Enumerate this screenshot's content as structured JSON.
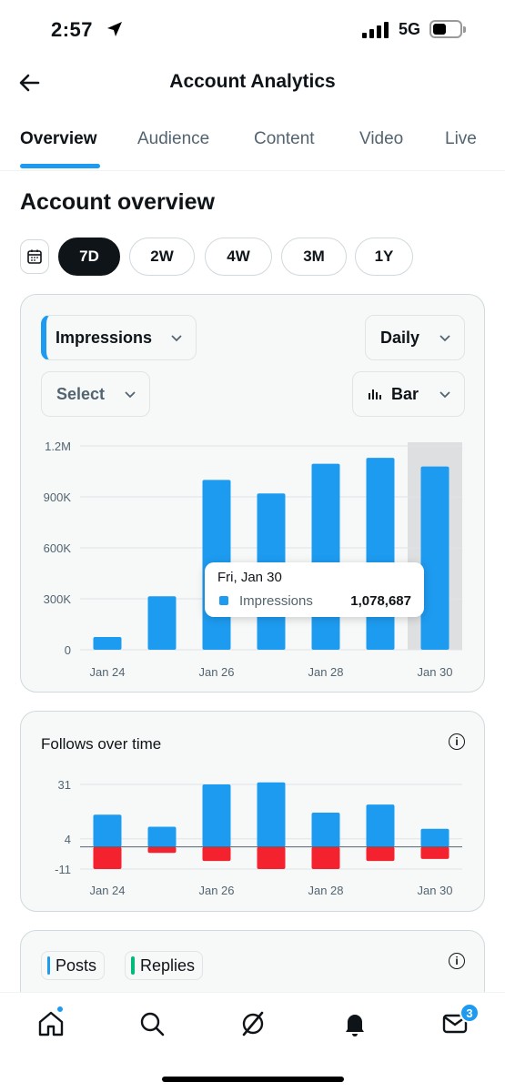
{
  "status_bar": {
    "time": "2:57",
    "network": "5G"
  },
  "header": {
    "title": "Account Analytics"
  },
  "tabs": [
    {
      "label": "Overview",
      "active": true
    },
    {
      "label": "Audience"
    },
    {
      "label": "Content"
    },
    {
      "label": "Video"
    },
    {
      "label": "Live"
    }
  ],
  "section_title": "Account overview",
  "ranges": [
    {
      "label": "7D",
      "active": true
    },
    {
      "label": "2W"
    },
    {
      "label": "4W"
    },
    {
      "label": "3M"
    },
    {
      "label": "1Y"
    }
  ],
  "controls": {
    "metric": "Impressions",
    "interval": "Daily",
    "compare": "Select",
    "chart_type": "Bar"
  },
  "tooltip": {
    "date": "Fri, Jan 30",
    "series": "Impressions",
    "value": "1,078,687"
  },
  "follows_card": {
    "title": "Follows over time"
  },
  "posts_card": {
    "legend": [
      {
        "label": "Posts",
        "color": "#1d9bf0"
      },
      {
        "label": "Replies",
        "color": "#00ba7c"
      }
    ]
  },
  "colors": {
    "accent": "#1d9bf0",
    "negative": "#f4212e",
    "text": "#0f1419",
    "muted": "#536471"
  },
  "bottom_nav": {
    "items": [
      "home-icon",
      "search-icon",
      "grok-icon",
      "notifications-icon",
      "messages-icon"
    ],
    "message_badge": "3"
  },
  "chart_data": [
    {
      "type": "bar",
      "categories": [
        "Jan 24",
        "Jan 25",
        "Jan 26",
        "Jan 27",
        "Jan 28",
        "Jan 29",
        "Jan 30"
      ],
      "tick_labels": [
        "Jan 24",
        "Jan 26",
        "Jan 28",
        "Jan 30"
      ],
      "series": [
        {
          "name": "Impressions",
          "values": [
            75000,
            315000,
            1000000,
            920000,
            1095000,
            1130000,
            1078687
          ]
        }
      ],
      "ylim": [
        0,
        1200000
      ],
      "yticks": [
        0,
        300000,
        600000,
        900000,
        1200000
      ],
      "ytick_labels": [
        "0",
        "300K",
        "600K",
        "900K",
        "1.2M"
      ],
      "highlighted_category": "Jan 30",
      "grid": true
    },
    {
      "type": "bar",
      "title": "Follows over time",
      "categories": [
        "Jan 24",
        "Jan 25",
        "Jan 26",
        "Jan 27",
        "Jan 28",
        "Jan 29",
        "Jan 30"
      ],
      "tick_labels": [
        "Jan 24",
        "Jan 26",
        "Jan 28",
        "Jan 30"
      ],
      "series": [
        {
          "values": [
            16,
            10,
            31,
            32,
            17,
            21,
            9
          ]
        },
        {
          "values": [
            -11,
            -3,
            -7,
            -11,
            -11,
            -7,
            -6
          ]
        }
      ],
      "ylim": [
        -11,
        31
      ],
      "ytick_labels": [
        "31",
        "4",
        "-11"
      ],
      "yticks": [
        31,
        4,
        -11
      ],
      "grid": true
    }
  ]
}
